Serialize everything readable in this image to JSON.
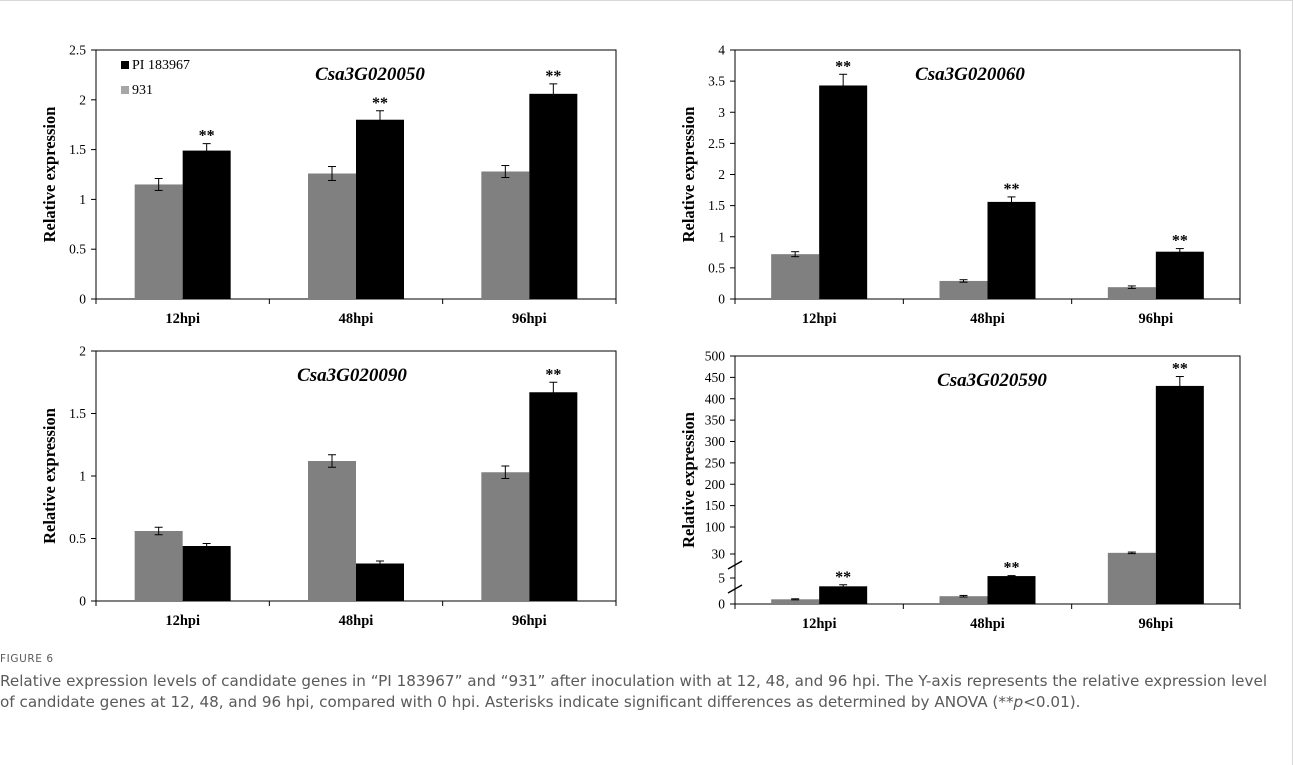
{
  "legend": {
    "series_a": "PI 183967",
    "series_b": "931"
  },
  "caption": {
    "label": "FIGURE 6",
    "text_1": "Relative expression levels of candidate genes in “PI 183967” and “931” after inoculation with at 12, 48, and 96 hpi. The Y-axis represents the relative expression level of candidate genes at 12, 48, and 96 hpi, compared with 0 hpi. Asterisks indicate significant differences as determined by ANOVA (**",
    "p_symbol": "p",
    "text_2": "<0.01)."
  },
  "colors": {
    "series_a": "#000000",
    "series_b": "#808080"
  },
  "chart_data": [
    {
      "type": "bar",
      "title": "Csa3G020050",
      "ylabel": "Relative expression",
      "categories": [
        "12hpi",
        "48hpi",
        "96hpi"
      ],
      "ylim": [
        0,
        2.5
      ],
      "yticks": [
        "0",
        "0.5",
        "1",
        "1.5",
        "2",
        "2.5"
      ],
      "yticks_values": [
        0,
        0.5,
        1,
        1.5,
        2,
        2.5
      ],
      "series": [
        {
          "name": "931",
          "values": [
            1.15,
            1.26,
            1.28
          ],
          "errors": [
            0.06,
            0.07,
            0.06
          ],
          "labels": [
            "",
            "",
            ""
          ]
        },
        {
          "name": "PI 183967",
          "values": [
            1.49,
            1.8,
            2.06
          ],
          "errors": [
            0.07,
            0.09,
            0.1
          ],
          "labels": [
            "**",
            "**",
            "**"
          ]
        }
      ],
      "legend": true,
      "axis_break": false
    },
    {
      "type": "bar",
      "title": "Csa3G020060",
      "ylabel": "Relative expression",
      "categories": [
        "12hpi",
        "48hpi",
        "96hpi"
      ],
      "ylim": [
        0,
        4
      ],
      "yticks": [
        "0",
        "0.5",
        "1",
        "1.5",
        "2",
        "2.5",
        "3",
        "3.5",
        "4"
      ],
      "yticks_values": [
        0,
        0.5,
        1,
        1.5,
        2,
        2.5,
        3,
        3.5,
        4
      ],
      "series": [
        {
          "name": "931",
          "values": [
            0.72,
            0.29,
            0.19
          ],
          "errors": [
            0.04,
            0.02,
            0.02
          ],
          "labels": [
            "",
            "",
            ""
          ]
        },
        {
          "name": "PI 183967",
          "values": [
            3.43,
            1.56,
            0.76
          ],
          "errors": [
            0.18,
            0.08,
            0.05
          ],
          "labels": [
            "**",
            "**",
            "**"
          ]
        }
      ],
      "legend": false,
      "axis_break": false
    },
    {
      "type": "bar",
      "title": "Csa3G020090",
      "ylabel": "Relative expression",
      "categories": [
        "12hpi",
        "48hpi",
        "96hpi"
      ],
      "ylim": [
        0,
        2
      ],
      "yticks": [
        "0",
        "0.5",
        "1",
        "1.5",
        "2"
      ],
      "yticks_values": [
        0,
        0.5,
        1,
        1.5,
        2
      ],
      "series": [
        {
          "name": "931",
          "values": [
            0.56,
            1.12,
            1.03
          ],
          "errors": [
            0.03,
            0.05,
            0.05
          ],
          "labels": [
            "",
            "",
            ""
          ]
        },
        {
          "name": "PI 183967",
          "values": [
            0.44,
            0.3,
            1.67
          ],
          "errors": [
            0.02,
            0.02,
            0.08
          ],
          "labels": [
            "",
            "",
            "**"
          ]
        }
      ],
      "legend": false,
      "axis_break": false
    },
    {
      "type": "bar",
      "title": "Csa3G020590",
      "ylabel": "Relative expression",
      "categories": [
        "12hpi",
        "48hpi",
        "96hpi"
      ],
      "ylim": [
        0,
        500
      ],
      "yticks": [
        "0",
        "5",
        "30",
        "100",
        "150",
        "200",
        "250",
        "300",
        "350",
        "400",
        "450",
        "500"
      ],
      "yticks_values": [
        0,
        5,
        30,
        100,
        150,
        200,
        250,
        300,
        350,
        400,
        450,
        500
      ],
      "series": [
        {
          "name": "931",
          "values": [
            0.9,
            1.5,
            33
          ],
          "errors": [
            0.1,
            0.15,
            2
          ],
          "labels": [
            "",
            "",
            ""
          ]
        },
        {
          "name": "PI 183967",
          "values": [
            3.4,
            7,
            430
          ],
          "errors": [
            0.3,
            0.5,
            22
          ],
          "labels": [
            "**",
            "**",
            "**"
          ]
        }
      ],
      "legend": false,
      "axis_break": true
    }
  ]
}
